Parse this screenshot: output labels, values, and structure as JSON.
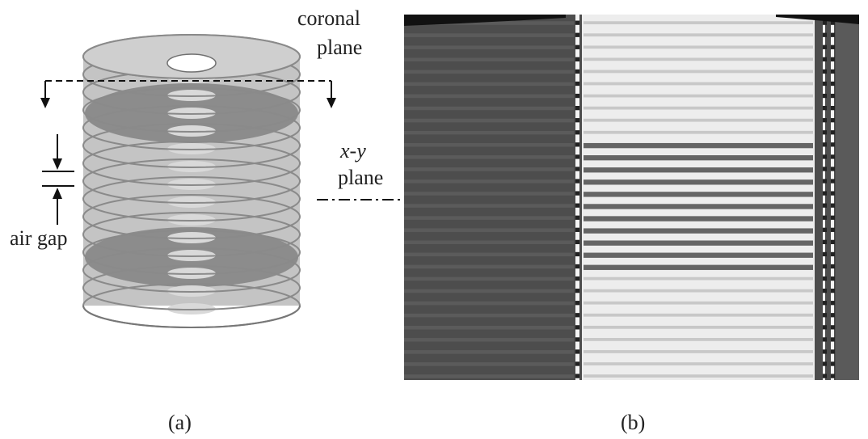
{
  "labels": {
    "coronal_line1": "coronal",
    "coronal_line2": "plane",
    "xy_line1": "x-y",
    "xy_line2": "plane",
    "air_gap": "air gap",
    "caption_a": "(a)",
    "caption_b": "(b)"
  },
  "panel_a": {
    "stack_fill": "#c4c4c4",
    "stack_stroke": "#8a8a8a",
    "section_fill": "#8c8c8c",
    "hole_fill": "#ffffff",
    "ring_count": 15
  },
  "panel_b": {
    "background": "#4d4d4d",
    "bright_band": "#ededed",
    "band_count": 30
  }
}
